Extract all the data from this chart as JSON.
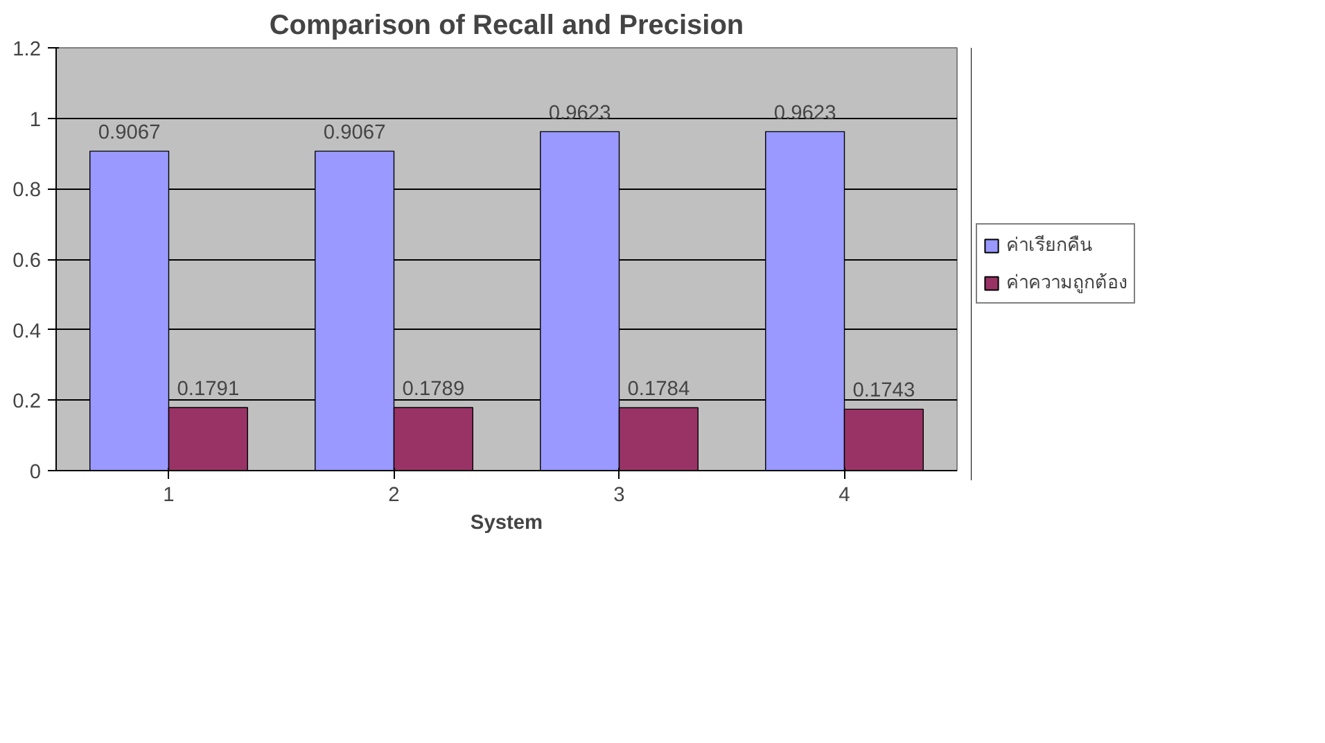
{
  "chart_data": {
    "type": "bar",
    "title": "Comparison of Recall and Precision",
    "xlabel": "System",
    "categories": [
      "1",
      "2",
      "3",
      "4"
    ],
    "series": [
      {
        "name": "ค่าเรียกคืน",
        "color": "#9999ff",
        "values": [
          0.9067,
          0.9067,
          0.9623,
          0.9623
        ]
      },
      {
        "name": "ค่าความถูกต้อง",
        "color": "#993366",
        "values": [
          0.1791,
          0.1789,
          0.1784,
          0.1743
        ]
      }
    ],
    "ylim": [
      0,
      1.2
    ],
    "yticks": [
      0,
      0.2,
      0.4,
      0.6,
      0.8,
      1,
      1.2
    ],
    "grid": "y",
    "legend": "right",
    "data_labels": true
  }
}
